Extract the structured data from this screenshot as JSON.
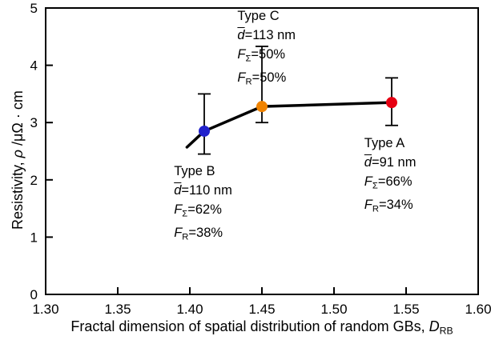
{
  "chart_data": {
    "type": "scatter",
    "subtype": "line-with-error-bars",
    "title": "",
    "xlabel": "Fractal dimension of spatial distribution of random GBs, DRB",
    "ylabel": "Resistivity, ρ /μΩ · cm",
    "xlabel_segments": [
      {
        "t": "Fractal dimension of spatial distribution of random GBs, "
      },
      {
        "t": "D",
        "style": "italic"
      },
      {
        "t": "RB",
        "style": "sub"
      }
    ],
    "ylabel_segments": [
      {
        "t": "Resistivity, "
      },
      {
        "t": "ρ",
        "style": "italic"
      },
      {
        "t": " /μΩ · cm"
      }
    ],
    "xlim": [
      1.3,
      1.6
    ],
    "ylim": [
      0,
      5
    ],
    "xtick_values": [
      1.3,
      1.35,
      1.4,
      1.45,
      1.5,
      1.55,
      1.6
    ],
    "xtick_labels": [
      "1.30",
      "1.35",
      "1.40",
      "1.45",
      "1.50",
      "1.55",
      "1.60"
    ],
    "ytick_values": [
      0,
      1,
      2,
      3,
      4,
      5
    ],
    "ytick_labels": [
      "0",
      "1",
      "2",
      "3",
      "4",
      "5"
    ],
    "grid": false,
    "legend": false,
    "background": "#ffffff",
    "axis_color": "#000000",
    "line_color": "#000000",
    "line_width": 3.5,
    "error_bar_cap_half_width": 8,
    "line_points": [
      [
        1.398,
        2.57
      ],
      [
        1.41,
        2.85
      ],
      [
        1.45,
        3.28
      ],
      [
        1.54,
        3.35
      ]
    ],
    "points": [
      {
        "id": "type-b",
        "label": "Type B",
        "x": 1.41,
        "y": 2.85,
        "y_min": 2.45,
        "y_max": 3.5,
        "d_nm": 110,
        "F_sigma_pct": 62,
        "F_R_pct": 38,
        "color": "#2222cc",
        "annotation": {
          "anchor_x": 1.389,
          "anchor_y": 2.32,
          "lines": [
            [
              {
                "t": "Type B"
              }
            ],
            [
              {
                "t": "d",
                "style": "italic-overline"
              },
              {
                "t": "=110 nm"
              }
            ],
            [
              {
                "t": "F",
                "style": "italic"
              },
              {
                "t": "Σ",
                "style": "sub"
              },
              {
                "t": "=62%"
              }
            ],
            [
              {
                "t": "F",
                "style": "italic"
              },
              {
                "t": "R",
                "style": "sub"
              },
              {
                "t": "=38%"
              }
            ]
          ]
        }
      },
      {
        "id": "type-c",
        "label": "Type C",
        "x": 1.45,
        "y": 3.28,
        "y_min": 3.0,
        "y_max": 4.33,
        "d_nm": 113,
        "F_sigma_pct": 50,
        "F_R_pct": 50,
        "color": "#f08300",
        "annotation": {
          "anchor_x": 1.433,
          "anchor_y": 5.03,
          "lines": [
            [
              {
                "t": "Type C"
              }
            ],
            [
              {
                "t": "d",
                "style": "italic-overline"
              },
              {
                "t": "=113 nm"
              }
            ],
            [
              {
                "t": "F",
                "style": "italic"
              },
              {
                "t": "Σ",
                "style": "sub"
              },
              {
                "t": "=50%"
              }
            ],
            [
              {
                "t": "F",
                "style": "italic"
              },
              {
                "t": "R",
                "style": "sub"
              },
              {
                "t": "=50%"
              }
            ]
          ]
        }
      },
      {
        "id": "type-a",
        "label": "Type A",
        "x": 1.54,
        "y": 3.35,
        "y_min": 2.95,
        "y_max": 3.78,
        "d_nm": 91,
        "F_sigma_pct": 66,
        "F_R_pct": 34,
        "color": "#e60012",
        "annotation": {
          "anchor_x": 1.521,
          "anchor_y": 2.81,
          "lines": [
            [
              {
                "t": "Type A"
              }
            ],
            [
              {
                "t": "d",
                "style": "italic-overline"
              },
              {
                "t": "=91 nm"
              }
            ],
            [
              {
                "t": "F",
                "style": "italic"
              },
              {
                "t": "Σ",
                "style": "sub"
              },
              {
                "t": "=66%"
              }
            ],
            [
              {
                "t": "F",
                "style": "italic"
              },
              {
                "t": "R",
                "style": "sub"
              },
              {
                "t": "=34%"
              }
            ]
          ]
        }
      }
    ]
  }
}
